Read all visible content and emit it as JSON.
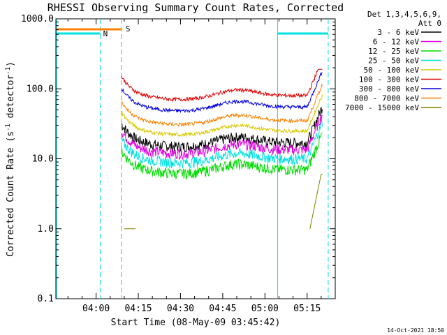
{
  "chart_data": {
    "type": "line",
    "title": "RHESSI Observing Summary Count Rates, Corrected",
    "xlabel": "Start Time (08-May-09 03:45:42)",
    "ylabel_main": "Corrected Count Rate (s",
    "ylabel_sup1": "-1",
    "ylabel_mid": " detector",
    "ylabel_sup2": "-1",
    "ylabel_end": ")",
    "yscale": "log",
    "ylim": [
      0.1,
      1000
    ],
    "yticks": [
      "0.1",
      "1.0",
      "10.0",
      "100.0",
      "1000.0"
    ],
    "xlim": [
      "03:45:42",
      "05:25:00"
    ],
    "xticks": [
      "04:00",
      "04:15",
      "04:30",
      "04:45",
      "05:00",
      "05:15"
    ],
    "legend_header": [
      "Det 1,3,4,5,6,9,",
      "Att 0"
    ],
    "legend_position": "right",
    "markers": [
      {
        "label": "N",
        "color": "#00e0e0"
      },
      {
        "label": "S",
        "color": "#ff8000"
      }
    ],
    "series": [
      {
        "name": "3 - 6 keV",
        "color": "#000000",
        "approx_level": 17
      },
      {
        "name": "6 - 12 keV",
        "color": "#e000e0",
        "approx_level": 13.5
      },
      {
        "name": "12 - 25 keV",
        "color": "#00dd00",
        "approx_level": 7
      },
      {
        "name": "25 - 50 keV",
        "color": "#00e0e0",
        "approx_level": 10
      },
      {
        "name": "50 - 100 keV",
        "color": "#d8c800",
        "approx_level": 25
      },
      {
        "name": "100 - 300 keV",
        "color": "#e00000",
        "approx_level": 80
      },
      {
        "name": "300 - 800 keV",
        "color": "#0000e0",
        "approx_level": 55
      },
      {
        "name": "800 - 7000 keV",
        "color": "#ff8000",
        "approx_level": 35
      },
      {
        "name": "7000 - 15000 keV",
        "color": "#808000",
        "approx_level": 1.0
      }
    ],
    "timestamp": "14-Oct-2021 18:50"
  }
}
